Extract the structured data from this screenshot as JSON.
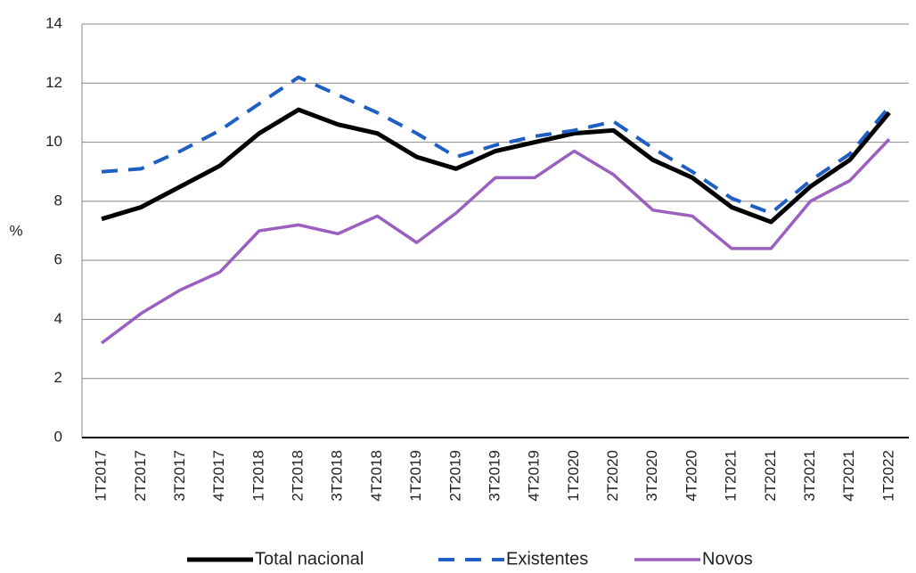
{
  "chart_data": {
    "type": "line",
    "categories": [
      "1T2017",
      "2T2017",
      "3T2017",
      "4T2017",
      "1T2018",
      "2T2018",
      "3T2018",
      "4T2018",
      "1T2019",
      "2T2019",
      "3T2019",
      "4T2019",
      "1T2020",
      "2T2020",
      "3T2020",
      "4T2020",
      "1T2021",
      "2T2021",
      "3T2021",
      "4T2021",
      "1T2022"
    ],
    "y_label": "%",
    "ylim": [
      0,
      14
    ],
    "yticks": [
      0,
      2,
      4,
      6,
      8,
      10,
      12,
      14
    ],
    "grid": true,
    "legend": "bottom",
    "series": [
      {
        "name": "Total nacional",
        "color": "#000000",
        "dash": "solid",
        "width": 5,
        "values": [
          7.4,
          7.8,
          8.5,
          9.2,
          10.3,
          11.1,
          10.6,
          10.3,
          9.5,
          9.1,
          9.7,
          10.0,
          10.3,
          10.4,
          9.4,
          8.8,
          7.8,
          7.3,
          8.5,
          9.4,
          11.0
        ]
      },
      {
        "name": "Existentes",
        "color": "#1f5fc4",
        "dash": "dashed",
        "width": 4,
        "values": [
          9.0,
          9.1,
          9.7,
          10.4,
          11.3,
          12.2,
          11.6,
          11.0,
          10.3,
          9.5,
          9.9,
          10.2,
          10.4,
          10.7,
          9.8,
          9.0,
          8.1,
          7.6,
          8.7,
          9.6,
          11.2
        ]
      },
      {
        "name": "Novos",
        "color": "#9b5fc0",
        "dash": "solid",
        "width": 3.5,
        "values": [
          3.2,
          4.2,
          5.0,
          5.6,
          7.0,
          7.2,
          6.9,
          7.5,
          6.6,
          7.6,
          8.8,
          8.8,
          9.7,
          8.9,
          7.7,
          7.5,
          6.4,
          6.4,
          8.0,
          8.7,
          10.1
        ]
      }
    ]
  }
}
